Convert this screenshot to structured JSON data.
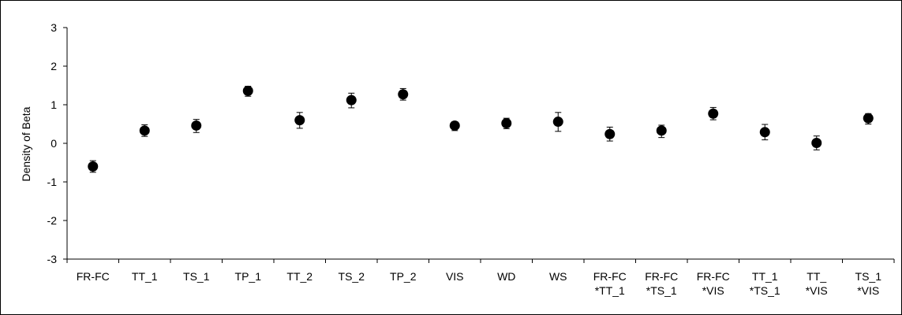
{
  "chart_data": {
    "type": "scatter",
    "title": "",
    "xlabel": "",
    "ylabel": "Density of Beta",
    "ylim": [
      -3,
      3
    ],
    "yticks": [
      3,
      2,
      1,
      0,
      -1,
      -2,
      -3
    ],
    "grid": false,
    "legend": "none",
    "marker_color": "#000000",
    "categories": [
      [
        "FR-FC"
      ],
      [
        "TT_1"
      ],
      [
        "TS_1"
      ],
      [
        "TP_1"
      ],
      [
        "TT_2"
      ],
      [
        "TS_2"
      ],
      [
        "TP_2"
      ],
      [
        "VIS"
      ],
      [
        "WD"
      ],
      [
        "WS"
      ],
      [
        "FR-FC",
        "*TT_1"
      ],
      [
        "FR-FC",
        "*TS_1"
      ],
      [
        "FR-FC",
        "*VIS"
      ],
      [
        "TT_1",
        "*TS_1"
      ],
      [
        "TT_",
        "*VIS"
      ],
      [
        "TS_1",
        "*VIS"
      ]
    ],
    "series": [
      {
        "values": [
          -0.6,
          0.33,
          0.46,
          1.36,
          0.6,
          1.12,
          1.27,
          0.46,
          0.52,
          0.56,
          0.24,
          0.33,
          0.77,
          0.29,
          0.01,
          0.65
        ],
        "error_low": [
          -0.75,
          0.18,
          0.28,
          1.22,
          0.39,
          0.92,
          1.12,
          0.33,
          0.38,
          0.31,
          0.06,
          0.15,
          0.61,
          0.09,
          -0.17,
          0.5
        ],
        "error_high": [
          -0.45,
          0.48,
          0.62,
          1.48,
          0.8,
          1.3,
          1.42,
          0.56,
          0.65,
          0.8,
          0.42,
          0.47,
          0.93,
          0.49,
          0.19,
          0.77
        ]
      }
    ]
  }
}
